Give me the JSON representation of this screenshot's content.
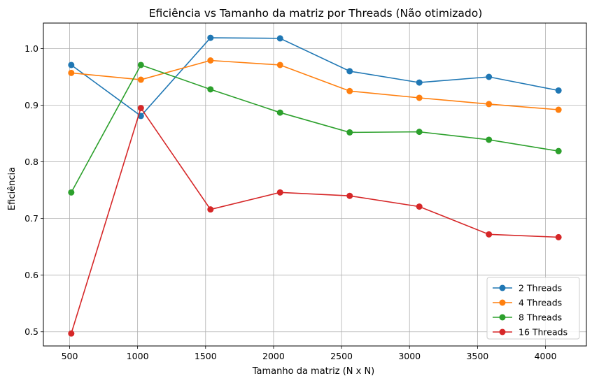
{
  "chart_data": {
    "type": "line",
    "title": "Eficiência vs Tamanho da matriz por Threads (Não otimizado)",
    "xlabel": "Tamanho da matriz (N x N)",
    "ylabel": "Eficiência",
    "x": [
      512,
      1024,
      1536,
      2048,
      2560,
      3072,
      3584,
      4096
    ],
    "xlim": [
      307,
      4301
    ],
    "ylim": [
      0.475,
      1.045
    ],
    "xticks": [
      500,
      1000,
      1500,
      2000,
      2500,
      3000,
      3500,
      4000
    ],
    "yticks": [
      0.5,
      0.6,
      0.7,
      0.8,
      0.9,
      1.0
    ],
    "xtick_labels": [
      "500",
      "1000",
      "1500",
      "2000",
      "2500",
      "3000",
      "3500",
      "4000"
    ],
    "ytick_labels": [
      "0.5",
      "0.6",
      "0.7",
      "0.8",
      "0.9",
      "1.0"
    ],
    "grid": true,
    "legend_position": "lower-right",
    "series": [
      {
        "name": "2 Threads",
        "color": "#1f77b4",
        "values": [
          0.971,
          0.881,
          1.019,
          1.018,
          0.96,
          0.94,
          0.95,
          0.926
        ]
      },
      {
        "name": "4 Threads",
        "color": "#ff7f0e",
        "values": [
          0.957,
          0.945,
          0.979,
          0.971,
          0.925,
          0.913,
          0.902,
          0.892
        ]
      },
      {
        "name": "8 Threads",
        "color": "#2ca02c",
        "values": [
          0.746,
          0.971,
          0.928,
          0.887,
          0.852,
          0.853,
          0.839,
          0.819
        ]
      },
      {
        "name": "16 Threads",
        "color": "#d62728",
        "values": [
          0.497,
          0.895,
          0.716,
          0.746,
          0.74,
          0.721,
          0.672,
          0.667
        ]
      }
    ]
  }
}
